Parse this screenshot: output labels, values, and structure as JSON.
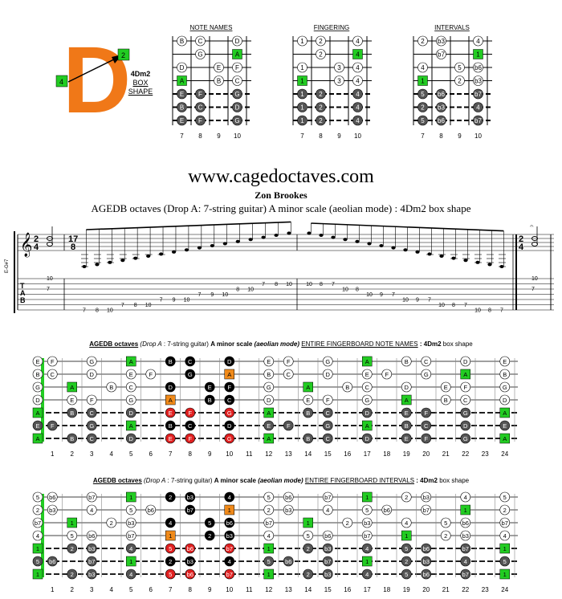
{
  "logo": {
    "letter": "D",
    "box_left": "4",
    "box_right": "2"
  },
  "shape_label": {
    "name": "4Dm2",
    "line2": "BOX",
    "line3": "SHAPE"
  },
  "diagram_titles": [
    "NOTE NAMES",
    "FINGERING",
    "INTERVALS"
  ],
  "diagram_frets": [
    "7",
    "8",
    "9",
    "10"
  ],
  "site": "www.cagedoctaves.com",
  "author": "Zon Brookes",
  "subtitle": "AGEDB octaves (Drop A: 7-string guitar) A minor scale (aeolian mode) : 4Dm2 box shape",
  "staff": {
    "time_start": "2/4",
    "time_mid": "17/8",
    "time_end": "2/4",
    "clef_label": "E-G#7",
    "tab_letters": [
      "T",
      "A",
      "B"
    ],
    "tab_asc": [
      {
        "s": 6,
        "f": "7"
      },
      {
        "s": 6,
        "f": "8"
      },
      {
        "s": 6,
        "f": "10"
      },
      {
        "s": 5,
        "f": "7"
      },
      {
        "s": 5,
        "f": "8"
      },
      {
        "s": 5,
        "f": "10"
      },
      {
        "s": 4,
        "f": "7"
      },
      {
        "s": 4,
        "f": "9"
      },
      {
        "s": 4,
        "f": "10"
      },
      {
        "s": 3,
        "f": "7"
      },
      {
        "s": 3,
        "f": "9"
      },
      {
        "s": 3,
        "f": "10"
      },
      {
        "s": 2,
        "f": "8"
      },
      {
        "s": 2,
        "f": "10"
      },
      {
        "s": 1,
        "f": "7"
      },
      {
        "s": 1,
        "f": "8"
      },
      {
        "s": 1,
        "f": "10"
      }
    ],
    "tab_desc": [
      {
        "s": 1,
        "f": "10"
      },
      {
        "s": 1,
        "f": "8"
      },
      {
        "s": 1,
        "f": "7"
      },
      {
        "s": 2,
        "f": "10"
      },
      {
        "s": 2,
        "f": "8"
      },
      {
        "s": 3,
        "f": "10"
      },
      {
        "s": 3,
        "f": "9"
      },
      {
        "s": 3,
        "f": "7"
      },
      {
        "s": 4,
        "f": "10"
      },
      {
        "s": 4,
        "f": "9"
      },
      {
        "s": 4,
        "f": "7"
      },
      {
        "s": 5,
        "f": "10"
      },
      {
        "s": 5,
        "f": "8"
      },
      {
        "s": 5,
        "f": "7"
      },
      {
        "s": 6,
        "f": "10"
      },
      {
        "s": 6,
        "f": "8"
      },
      {
        "s": 6,
        "f": "7"
      }
    ],
    "first_chord": [
      "10",
      "7"
    ],
    "last_chord": [
      "10",
      "7"
    ]
  },
  "board1_heading": {
    "a": "AGEDB octaves",
    "b": "(Drop A",
    "c": ": 7-string guitar)",
    "d": "A minor scale",
    "e": "(aeolian mode)",
    "f": "ENTIRE FINGERBOARD  NOTE NAMES",
    "g": ": 4Dm2",
    "h": "box shape"
  },
  "board2_heading": {
    "a": "AGEDB octaves",
    "b": "(Drop A",
    "c": ": 7-string guitar)",
    "d": "A minor scale",
    "e": "(aeolian mode)",
    "f": "ENTIRE FINGERBOARD INTERVALS",
    "g": ": 4Dm2",
    "h": "box shape"
  },
  "fret_numbers": [
    "1",
    "2",
    "3",
    "4",
    "5",
    "6",
    "7",
    "8",
    "9",
    "10",
    "11",
    "12",
    "13",
    "14",
    "15",
    "16",
    "17",
    "18",
    "19",
    "20",
    "21",
    "22",
    "23",
    "24"
  ],
  "colors": {
    "root": "#22cc22",
    "highlight": "#f08a1a",
    "red": "#e02020",
    "black": "#000000",
    "grey": "#555555",
    "logo": "#f07818"
  },
  "notes_names": [
    [
      "E",
      "F",
      "",
      "G",
      "",
      "A",
      "",
      "B",
      "C",
      "",
      "D",
      "",
      "E",
      "F",
      "",
      "G",
      "",
      "A",
      "",
      "B",
      "C",
      "",
      "D",
      "",
      "E"
    ],
    [
      "B",
      "C",
      "",
      "D",
      "",
      "E",
      "F",
      "",
      "G",
      "",
      "A",
      "",
      "B",
      "C",
      "",
      "D",
      "",
      "E",
      "F",
      "",
      "G",
      "",
      "A",
      "",
      "B"
    ],
    [
      "G",
      "",
      "A",
      "",
      "B",
      "C",
      "",
      "D",
      "",
      "E",
      "F",
      "",
      "G",
      "",
      "A",
      "",
      "B",
      "C",
      "",
      "D",
      "",
      "E",
      "F",
      "",
      "G"
    ],
    [
      "D",
      "",
      "E",
      "F",
      "",
      "G",
      "",
      "A",
      "",
      "B",
      "C",
      "",
      "D",
      "",
      "E",
      "F",
      "",
      "G",
      "",
      "A",
      "",
      "B",
      "C",
      "",
      "D"
    ],
    [
      "A",
      "",
      "B",
      "C",
      "",
      "D",
      "",
      "E",
      "F",
      "",
      "G",
      "",
      "A",
      "",
      "B",
      "C",
      "",
      "D",
      "",
      "E",
      "F",
      "",
      "G",
      "",
      "A"
    ],
    [
      "E",
      "F",
      "",
      "G",
      "",
      "A",
      "",
      "B",
      "C",
      "",
      "D",
      "",
      "E",
      "F",
      "",
      "G",
      "",
      "A",
      "",
      "B",
      "C",
      "",
      "D",
      "",
      "E"
    ],
    [
      "A",
      "",
      "B",
      "C",
      "",
      "D",
      "",
      "E",
      "F",
      "",
      "G",
      "",
      "A",
      "",
      "B",
      "C",
      "",
      "D",
      "",
      "E",
      "F",
      "",
      "G",
      "",
      "A"
    ]
  ],
  "notes_intervals": [
    [
      "5",
      "b6",
      "",
      "b7",
      "",
      "1",
      "",
      "2",
      "b3",
      "",
      "4",
      "",
      "5",
      "b6",
      "",
      "b7",
      "",
      "1",
      "",
      "2",
      "b3",
      "",
      "4",
      "",
      "5"
    ],
    [
      "2",
      "b3",
      "",
      "4",
      "",
      "5",
      "b6",
      "",
      "b7",
      "",
      "1",
      "",
      "2",
      "b3",
      "",
      "4",
      "",
      "5",
      "b6",
      "",
      "b7",
      "",
      "1",
      "",
      "2"
    ],
    [
      "b7",
      "",
      "1",
      "",
      "2",
      "b3",
      "",
      "4",
      "",
      "5",
      "b6",
      "",
      "b7",
      "",
      "1",
      "",
      "2",
      "b3",
      "",
      "4",
      "",
      "5",
      "b6",
      "",
      "b7"
    ],
    [
      "4",
      "",
      "5",
      "b6",
      "",
      "b7",
      "",
      "1",
      "",
      "2",
      "b3",
      "",
      "4",
      "",
      "5",
      "b6",
      "",
      "b7",
      "",
      "1",
      "",
      "2",
      "b3",
      "",
      "4"
    ],
    [
      "1",
      "",
      "2",
      "b3",
      "",
      "4",
      "",
      "5",
      "b6",
      "",
      "b7",
      "",
      "1",
      "",
      "2",
      "b3",
      "",
      "4",
      "",
      "5",
      "b6",
      "",
      "b7",
      "",
      "1"
    ],
    [
      "5",
      "b6",
      "",
      "b7",
      "",
      "1",
      "",
      "2",
      "b3",
      "",
      "4",
      "",
      "5",
      "b6",
      "",
      "b7",
      "",
      "1",
      "",
      "2",
      "b3",
      "",
      "4",
      "",
      "5"
    ],
    [
      "1",
      "",
      "2",
      "b3",
      "",
      "4",
      "",
      "5",
      "b6",
      "",
      "b7",
      "",
      "1",
      "",
      "2",
      "b3",
      "",
      "4",
      "",
      "5",
      "b6",
      "",
      "b7",
      "",
      "1"
    ]
  ],
  "diagram_fingering": [
    [
      "1",
      "2",
      "",
      "4"
    ],
    [
      "",
      "2",
      "",
      "4"
    ],
    [
      "1",
      "",
      "3",
      "4"
    ],
    [
      "1",
      "",
      "3",
      "4"
    ],
    [
      "1",
      "2",
      "",
      "4"
    ],
    [
      "1",
      "2",
      "",
      "4"
    ],
    [
      "1",
      "2",
      "",
      "4"
    ]
  ]
}
